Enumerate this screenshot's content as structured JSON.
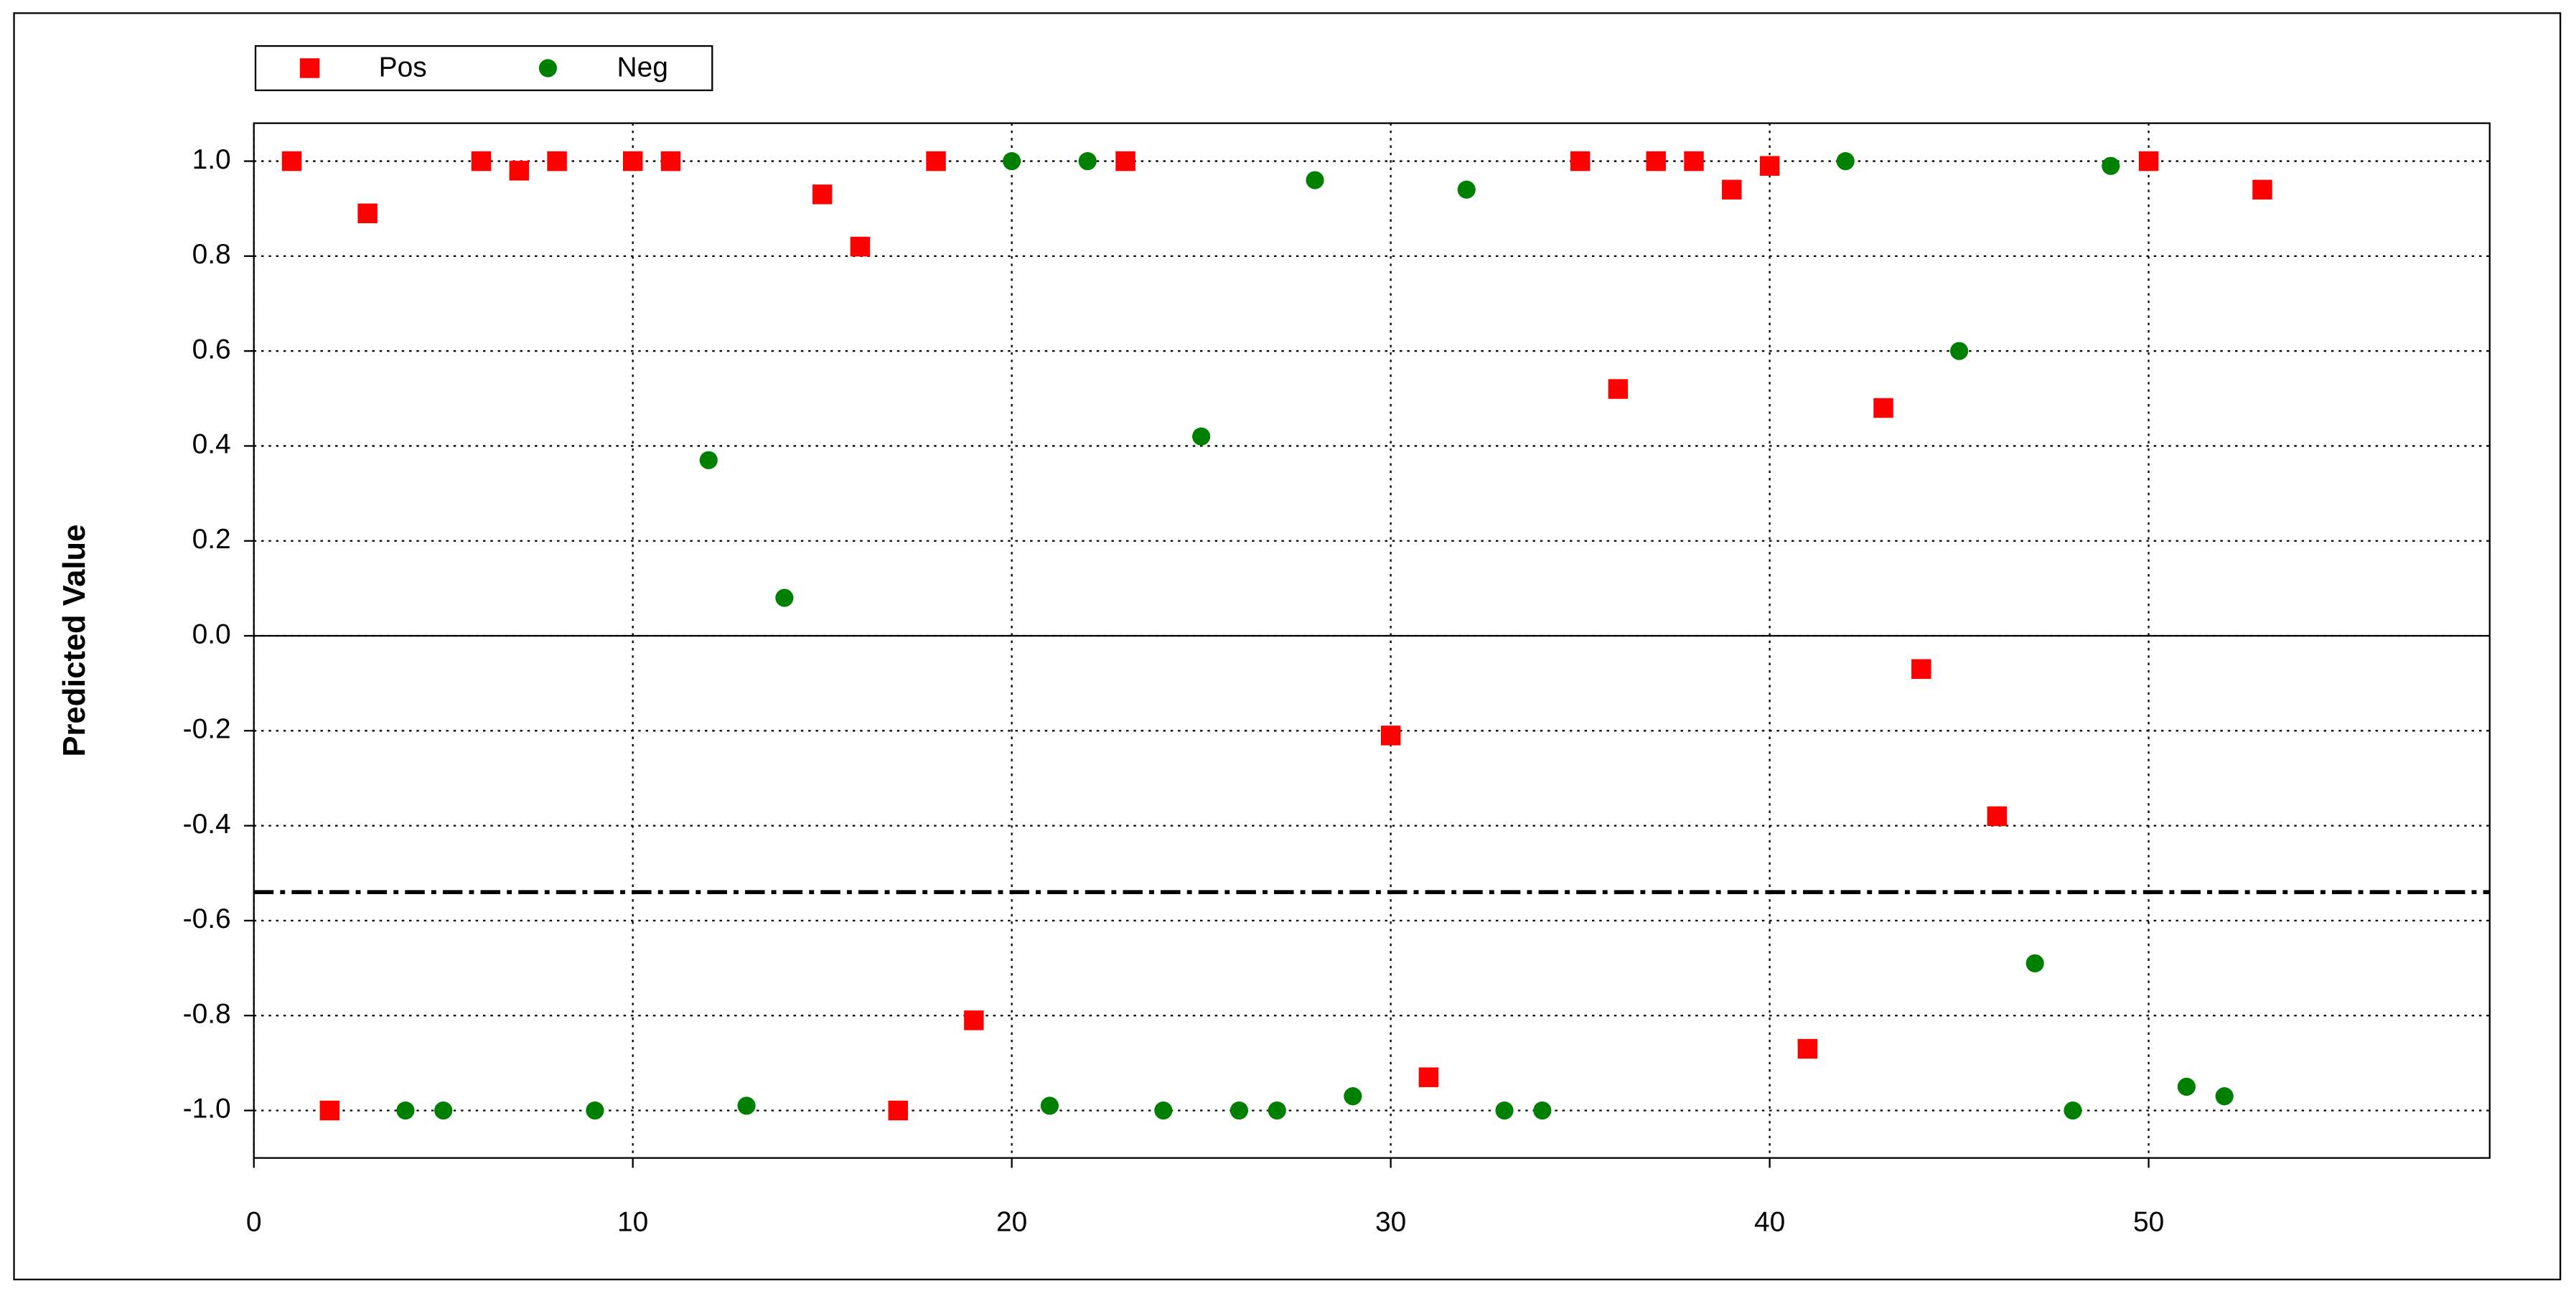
{
  "chart_data": {
    "type": "scatter",
    "y_label": "Predicted Value",
    "xlim": [
      0,
      59
    ],
    "xticks": [
      0,
      10,
      20,
      30,
      40,
      50
    ],
    "ylim": [
      -1.1,
      1.08
    ],
    "yticks": [
      {
        "value": -1,
        "label": "-1.0"
      },
      -0.8,
      -0.6,
      -0.4,
      -0.2,
      {
        "value": 0,
        "label": "0.0"
      },
      0.2,
      0.4,
      0.6,
      0.8,
      {
        "value": 1,
        "label": "1.0"
      }
    ],
    "grid": true,
    "threshold": -0.54,
    "legend": "top-left",
    "series": [
      {
        "name": "Pos",
        "color": "#ff0000",
        "marker": "square",
        "x": [
          1,
          2,
          3,
          6,
          7,
          8,
          10,
          11,
          15,
          16,
          17,
          18,
          19,
          23,
          30,
          31,
          35,
          36,
          37,
          38,
          39,
          40,
          41,
          43,
          44,
          46,
          50,
          53
        ],
        "values": [
          1.0,
          -1.0,
          0.89,
          1.0,
          0.98,
          1.0,
          1.0,
          1.0,
          0.93,
          0.82,
          -1.0,
          1.0,
          -0.81,
          1.0,
          -0.21,
          -0.93,
          1.0,
          0.52,
          1.0,
          1.0,
          0.94,
          0.99,
          -0.87,
          0.48,
          -0.07,
          -0.38,
          1.0,
          0.94
        ]
      },
      {
        "name": "Neg",
        "color": "#008000",
        "marker": "circle",
        "x": [
          4,
          5,
          9,
          12,
          13,
          14,
          20,
          21,
          22,
          24,
          25,
          26,
          27,
          28,
          29,
          32,
          33,
          34,
          42,
          45,
          47,
          48,
          49,
          51,
          52
        ],
        "values": [
          -1.0,
          -1.0,
          -1.0,
          0.37,
          -0.99,
          0.08,
          1.0,
          -0.99,
          1.0,
          -1.0,
          0.42,
          -1.0,
          -1.0,
          0.96,
          -0.97,
          0.94,
          -1.0,
          -1.0,
          1.0,
          0.6,
          -0.69,
          -1.0,
          0.99,
          -0.95,
          -0.97
        ]
      }
    ]
  }
}
